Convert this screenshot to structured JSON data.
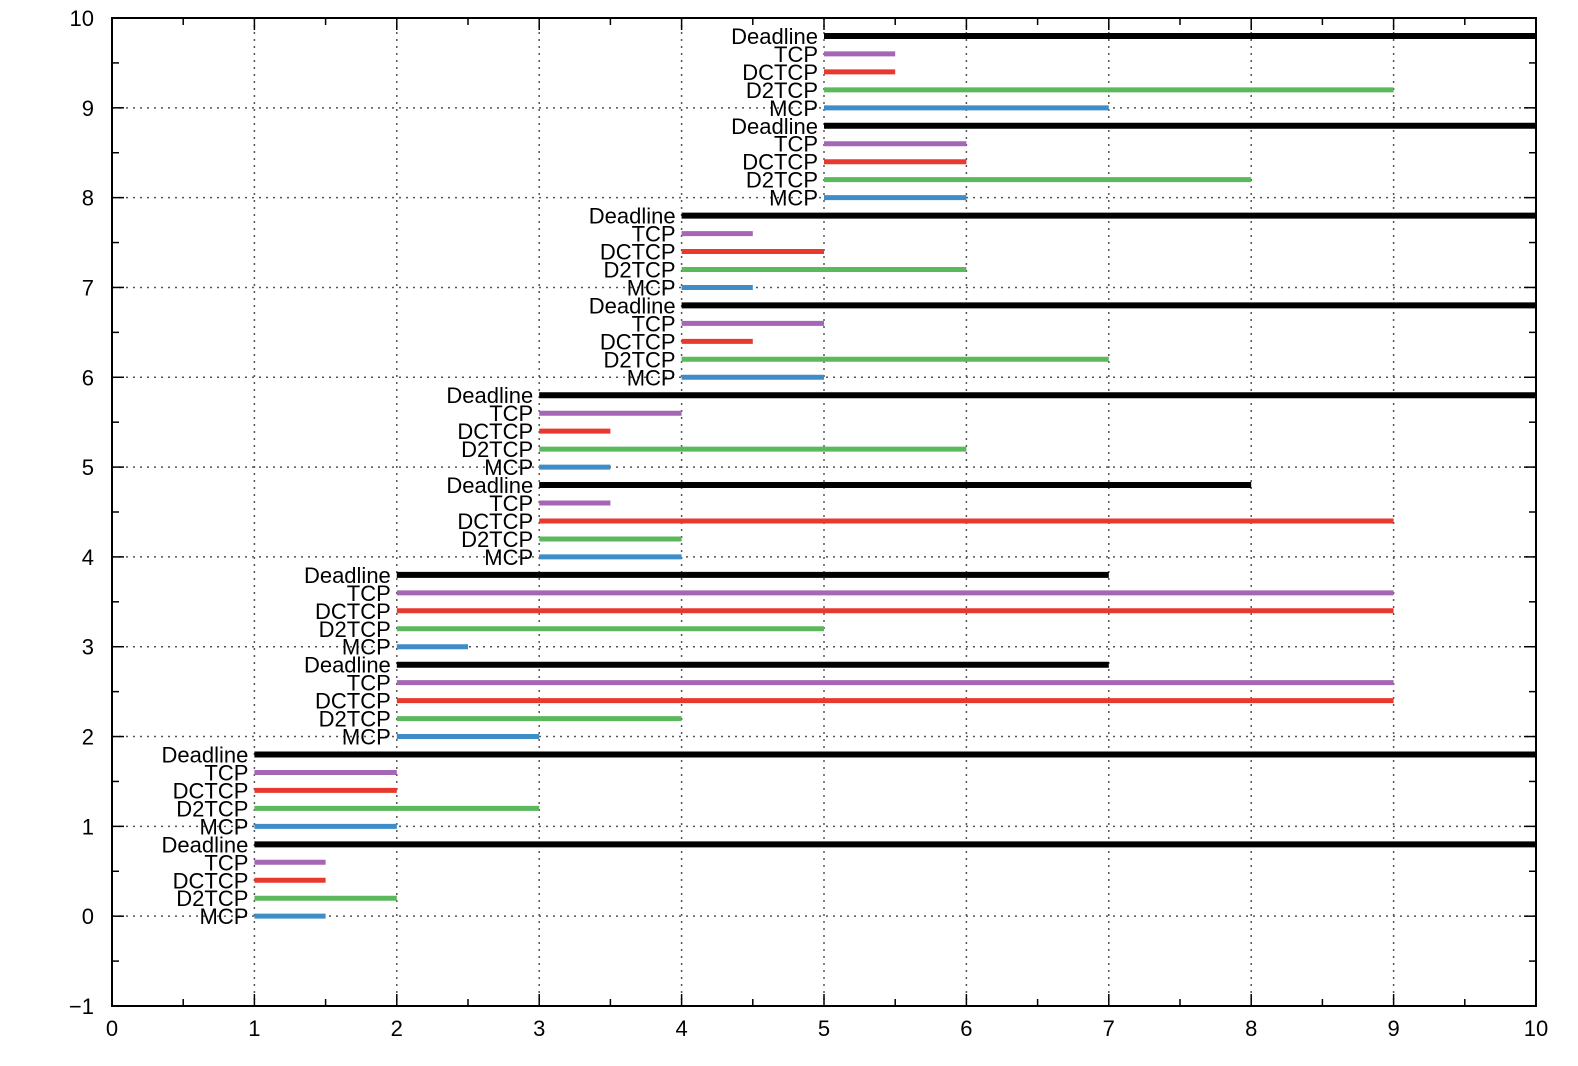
{
  "chart_data": {
    "type": "bar",
    "xlim": [
      0,
      10
    ],
    "ylim": [
      -1,
      10
    ],
    "xticks": [
      "0",
      "1",
      "2",
      "3",
      "4",
      "5",
      "6",
      "7",
      "8",
      "9",
      "10"
    ],
    "yticks": [
      "−1",
      "0",
      "1",
      "2",
      "3",
      "4",
      "5",
      "6",
      "7",
      "8",
      "9",
      "10"
    ],
    "grid": true,
    "colors": {
      "Deadline": "#000000",
      "TCP": "#a466b5",
      "DCTCP": "#e8392f",
      "D2TCP": "#5cb85c",
      "MCP": "#3e8dc9"
    },
    "series": [
      {
        "name": "Deadline",
        "values": [
          [
            1,
            10
          ],
          [
            1,
            10
          ],
          [
            2,
            7
          ],
          [
            2,
            7
          ],
          [
            3,
            8
          ],
          [
            3,
            10
          ],
          [
            4,
            10
          ],
          [
            4,
            10
          ],
          [
            5,
            10
          ],
          [
            5,
            10
          ]
        ]
      },
      {
        "name": "TCP",
        "values": [
          [
            1,
            1.5
          ],
          [
            1,
            2
          ],
          [
            2,
            9
          ],
          [
            2,
            9
          ],
          [
            3,
            3.5
          ],
          [
            3,
            4
          ],
          [
            4,
            5
          ],
          [
            4,
            4.5
          ],
          [
            5,
            6
          ],
          [
            5,
            5.5
          ]
        ]
      },
      {
        "name": "DCTCP",
        "values": [
          [
            1,
            1.5
          ],
          [
            1,
            2
          ],
          [
            2,
            9
          ],
          [
            2,
            9
          ],
          [
            3,
            9
          ],
          [
            3,
            3.5
          ],
          [
            4,
            4.5
          ],
          [
            4,
            5
          ],
          [
            5,
            6
          ],
          [
            5,
            5.5
          ]
        ]
      },
      {
        "name": "D2TCP",
        "values": [
          [
            1,
            2
          ],
          [
            1,
            3
          ],
          [
            2,
            4
          ],
          [
            2,
            5
          ],
          [
            3,
            4
          ],
          [
            3,
            6
          ],
          [
            4,
            7
          ],
          [
            4,
            6
          ],
          [
            5,
            8
          ],
          [
            5,
            9
          ]
        ]
      },
      {
        "name": "MCP",
        "values": [
          [
            1,
            1.5
          ],
          [
            1,
            2
          ],
          [
            2,
            3
          ],
          [
            2,
            2.5
          ],
          [
            3,
            4
          ],
          [
            3,
            3.5
          ],
          [
            4,
            5
          ],
          [
            4,
            4.5
          ],
          [
            5,
            6
          ],
          [
            5,
            7
          ]
        ]
      }
    ],
    "y_positions": [
      0,
      1,
      2,
      3,
      4,
      5,
      6,
      7,
      8,
      9
    ]
  }
}
